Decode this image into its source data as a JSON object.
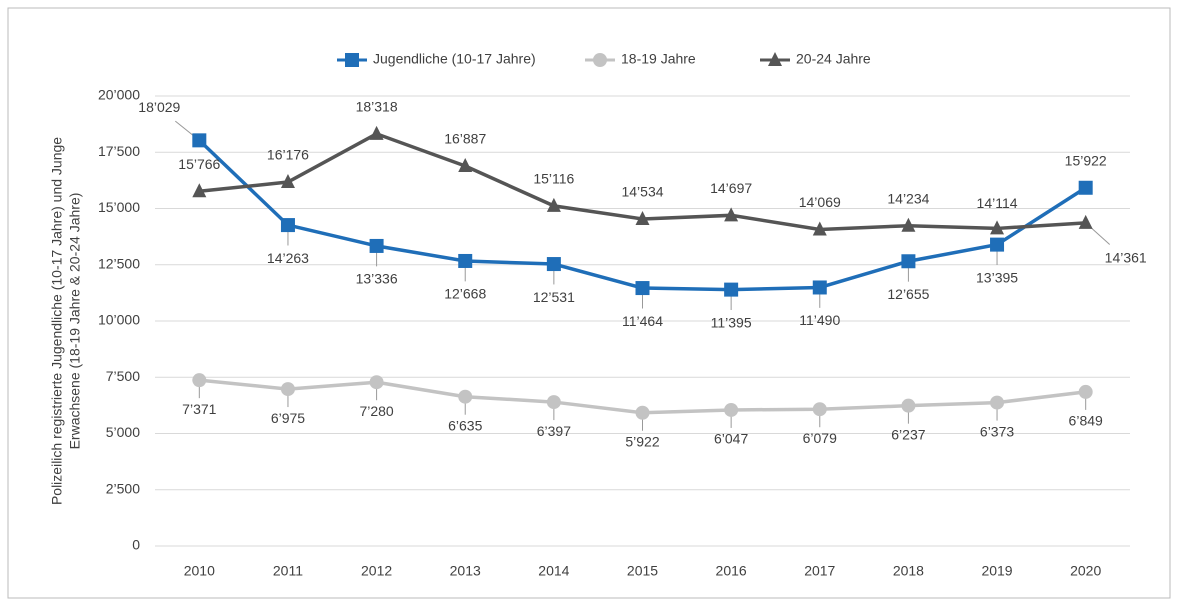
{
  "chart_data": {
    "type": "line",
    "ylabel": [
      "Polizeilich registrierte Jugendliche (10-17 Jahre) und Junge",
      "Erwachsene (18-19 Jahre & 20-24 Jahre)"
    ],
    "categories": [
      "2010",
      "2011",
      "2012",
      "2013",
      "2014",
      "2015",
      "2016",
      "2017",
      "2018",
      "2019",
      "2020"
    ],
    "series": [
      {
        "name": "Jugendliche (10-17 Jahre)",
        "color": "#1f6eb8",
        "marker": "square",
        "values": [
          18029,
          14263,
          13336,
          12668,
          12531,
          11464,
          11395,
          11490,
          12655,
          13395,
          15922
        ],
        "value_labels": [
          "18’029",
          "14’263",
          "13’336",
          "12’668",
          "12’531",
          "11’464",
          "11’395",
          "11’490",
          "12’655",
          "13’395",
          "15’922"
        ]
      },
      {
        "name": "18-19 Jahre",
        "color": "#c3c3c3",
        "marker": "circle",
        "values": [
          7371,
          6975,
          7280,
          6635,
          6397,
          5922,
          6047,
          6079,
          6237,
          6373,
          6849
        ],
        "value_labels": [
          "7’371",
          "6’975",
          "7’280",
          "6’635",
          "6’397",
          "5’922",
          "6’047",
          "6’079",
          "6’237",
          "6’373",
          "6’849"
        ]
      },
      {
        "name": "20-24 Jahre",
        "color": "#555555",
        "marker": "triangle",
        "values": [
          15766,
          16176,
          18318,
          16887,
          15116,
          14534,
          14697,
          14069,
          14234,
          14114,
          14361
        ],
        "value_labels": [
          "15’766",
          "16’176",
          "18’318",
          "16’887",
          "15’116",
          "14’534",
          "14’697",
          "14’069",
          "14’234",
          "14’114",
          "14’361"
        ]
      }
    ],
    "ylim": [
      0,
      20000
    ],
    "yticks": [
      0,
      {
        "value": 2500,
        "label": "2’500"
      },
      {
        "value": 5000,
        "label": "5’000"
      },
      {
        "value": 7500,
        "label": "7’500"
      },
      {
        "value": 10000,
        "label": "10’000"
      },
      {
        "value": 12500,
        "label": "12’500"
      },
      {
        "value": 15000,
        "label": "15’000"
      },
      {
        "value": 17500,
        "label": "17’500"
      },
      {
        "value": 20000,
        "label": "20’000"
      }
    ],
    "grid": true,
    "legend": "top"
  }
}
